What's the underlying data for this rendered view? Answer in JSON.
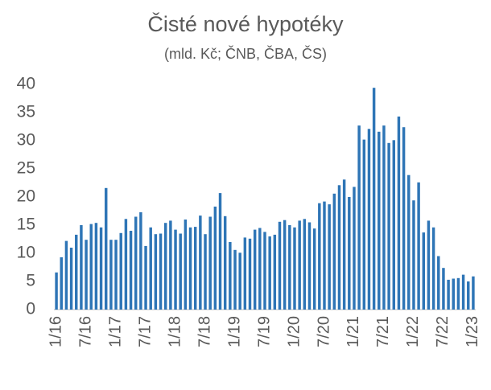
{
  "chart_data": {
    "type": "bar",
    "title": "Čisté nové hypotéky",
    "subtitle": "(mld. Kč; ČNB, ČBA, ČS)",
    "categories": [
      "1/16",
      null,
      null,
      null,
      null,
      null,
      "7/16",
      null,
      null,
      null,
      null,
      null,
      "1/17",
      null,
      null,
      null,
      null,
      null,
      "7/17",
      null,
      null,
      null,
      null,
      null,
      "1/18",
      null,
      null,
      null,
      null,
      null,
      "7/18",
      null,
      null,
      null,
      null,
      null,
      "1/19",
      null,
      null,
      null,
      null,
      null,
      "7/19",
      null,
      null,
      null,
      null,
      null,
      "1/20",
      null,
      null,
      null,
      null,
      null,
      "7/20",
      null,
      null,
      null,
      null,
      null,
      "1/21",
      null,
      null,
      null,
      null,
      null,
      "7/21",
      null,
      null,
      null,
      null,
      null,
      "1/22",
      null,
      null,
      null,
      null,
      null,
      "7/22",
      null,
      null,
      null,
      null,
      null,
      "1/23"
    ],
    "values": [
      6.6,
      9.3,
      12.2,
      11.0,
      13.3,
      15.0,
      12.4,
      15.2,
      15.4,
      14.6,
      21.6,
      12.4,
      12.4,
      13.6,
      16.1,
      14.0,
      16.5,
      17.3,
      11.3,
      14.6,
      13.4,
      13.5,
      15.4,
      15.8,
      14.2,
      13.5,
      16.0,
      14.6,
      14.7,
      16.7,
      13.4,
      16.5,
      18.3,
      20.7,
      16.6,
      12.0,
      10.6,
      10.1,
      12.8,
      12.6,
      14.2,
      14.5,
      13.8,
      13.0,
      13.3,
      15.6,
      15.9,
      15.0,
      14.6,
      15.8,
      16.1,
      15.5,
      14.4,
      18.9,
      19.2,
      18.7,
      20.6,
      22.1,
      23.1,
      20.0,
      21.8,
      32.7,
      30.2,
      32.1,
      39.4,
      31.6,
      32.7,
      29.6,
      30.1,
      34.3,
      32.4,
      23.9,
      19.4,
      22.6,
      13.7,
      15.8,
      14.6,
      9.5,
      7.4,
      5.3,
      5.5,
      5.6,
      6.2,
      5.0,
      5.9
    ],
    "color": "#2e75b6",
    "ylim": [
      0,
      40
    ],
    "yticks": [
      0,
      5,
      10,
      15,
      20,
      25,
      30,
      35,
      40
    ],
    "grid": false
  }
}
